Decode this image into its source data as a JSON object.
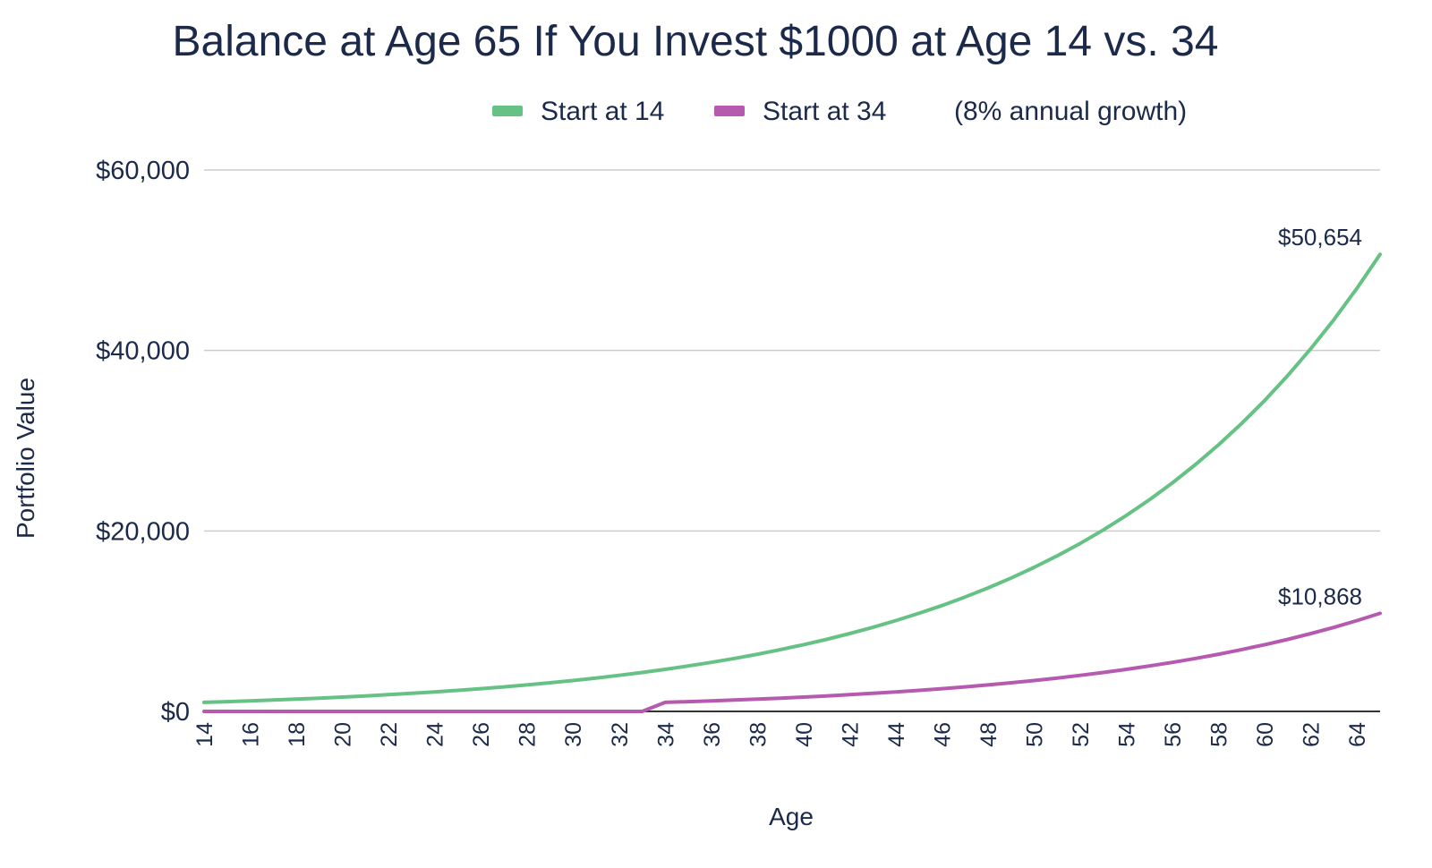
{
  "chart_data": {
    "type": "line",
    "title": "Balance at Age 65 If You Invest $1000 at Age 14 vs. 34",
    "note": "(8% annual growth)",
    "xlabel": "Age",
    "ylabel": "Portfolio Value",
    "x_range": [
      14,
      65
    ],
    "x_ticks": [
      "14",
      "16",
      "18",
      "20",
      "22",
      "24",
      "26",
      "28",
      "30",
      "32",
      "34",
      "36",
      "38",
      "40",
      "42",
      "44",
      "46",
      "48",
      "50",
      "52",
      "54",
      "56",
      "58",
      "60",
      "62",
      "64"
    ],
    "ylim": [
      0,
      60000
    ],
    "y_ticks": [
      {
        "value": 0,
        "label": "$0"
      },
      {
        "value": 20000,
        "label": "$20,000"
      },
      {
        "value": 40000,
        "label": "$40,000"
      },
      {
        "value": 60000,
        "label": "$60,000"
      }
    ],
    "grid": true,
    "legend": "top",
    "series": [
      {
        "name": "Start at 14",
        "color": "#66c184",
        "x": [
          14,
          15,
          16,
          17,
          18,
          19,
          20,
          21,
          22,
          23,
          24,
          25,
          26,
          27,
          28,
          29,
          30,
          31,
          32,
          33,
          34,
          35,
          36,
          37,
          38,
          39,
          40,
          41,
          42,
          43,
          44,
          45,
          46,
          47,
          48,
          49,
          50,
          51,
          52,
          53,
          54,
          55,
          56,
          57,
          58,
          59,
          60,
          61,
          62,
          63,
          64,
          65
        ],
        "values": [
          1000,
          1080,
          1166,
          1260,
          1360,
          1469,
          1587,
          1714,
          1851,
          1999,
          2159,
          2332,
          2518,
          2720,
          2937,
          3172,
          3426,
          3700,
          3996,
          4316,
          4661,
          5034,
          5437,
          5871,
          6341,
          6848,
          7396,
          7988,
          8627,
          9317,
          10063,
          10868,
          11737,
          12676,
          13690,
          14785,
          15968,
          17246,
          18625,
          20115,
          21725,
          23462,
          25339,
          27367,
          29556,
          31920,
          34474,
          37232,
          40211,
          43427,
          46902,
          50654
        ],
        "end_label": "$50,654"
      },
      {
        "name": "Start at 34",
        "color": "#b55aaf",
        "x": [
          14,
          15,
          16,
          17,
          18,
          19,
          20,
          21,
          22,
          23,
          24,
          25,
          26,
          27,
          28,
          29,
          30,
          31,
          32,
          33,
          34,
          35,
          36,
          37,
          38,
          39,
          40,
          41,
          42,
          43,
          44,
          45,
          46,
          47,
          48,
          49,
          50,
          51,
          52,
          53,
          54,
          55,
          56,
          57,
          58,
          59,
          60,
          61,
          62,
          63,
          64,
          65
        ],
        "values": [
          0,
          0,
          0,
          0,
          0,
          0,
          0,
          0,
          0,
          0,
          0,
          0,
          0,
          0,
          0,
          0,
          0,
          0,
          0,
          0,
          1000,
          1080,
          1166,
          1260,
          1360,
          1469,
          1587,
          1714,
          1851,
          1999,
          2159,
          2332,
          2518,
          2720,
          2937,
          3172,
          3426,
          3700,
          3996,
          4316,
          4661,
          5034,
          5437,
          5871,
          6341,
          6848,
          7396,
          7988,
          8627,
          9317,
          10063,
          10868
        ],
        "end_label": "$10,868"
      }
    ]
  }
}
